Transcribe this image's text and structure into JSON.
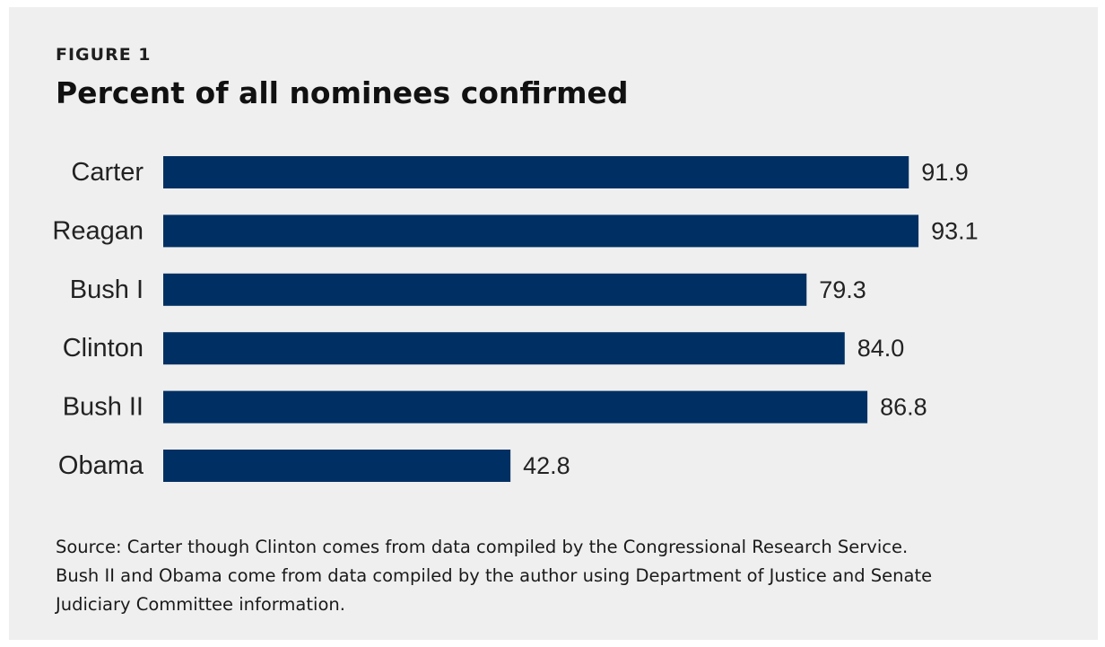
{
  "figure_label": "FIGURE 1",
  "title": "Percent of all nominees confirmed",
  "chart_data": {
    "type": "bar",
    "orientation": "horizontal",
    "title": "Percent of all nominees confirmed",
    "categories": [
      "Carter",
      "Reagan",
      "Bush I",
      "Clinton",
      "Bush II",
      "Obama"
    ],
    "values": [
      91.9,
      93.1,
      79.3,
      84.0,
      86.8,
      42.8
    ],
    "value_labels": [
      "91.9",
      "93.1",
      "79.3",
      "84.0",
      "86.8",
      "42.8"
    ],
    "xlim": [
      0,
      100
    ],
    "grid": false,
    "legend": "none",
    "bar_color": "#003063"
  },
  "source_lines": [
    "Source: Carter though Clinton comes from data compiled by the Congressional Research Service.",
    "Bush II and Obama come from data compiled by the author using Department of Justice and Senate",
    "Judiciary Committee information."
  ],
  "colors": {
    "background": "#efefef",
    "bar": "#003063",
    "text": "#222222"
  }
}
